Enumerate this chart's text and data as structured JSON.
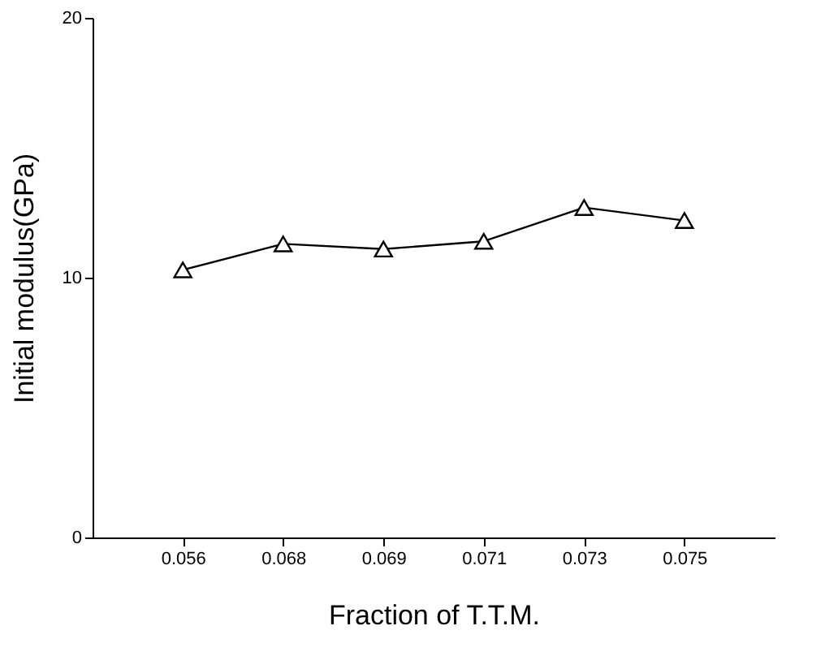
{
  "chart_data": {
    "type": "line",
    "xlabel": "Fraction of T.T.M.",
    "ylabel": "Initial modulus(GPa)",
    "categories": [
      "0.056",
      "0.068",
      "0.069",
      "0.071",
      "0.073",
      "0.075"
    ],
    "series": [
      {
        "color": "#000000",
        "values": [
          10.3,
          11.3,
          11.1,
          11.4,
          12.7,
          12.2
        ]
      }
    ],
    "ylim": [
      0,
      20
    ],
    "yticks": [
      0,
      10,
      20
    ],
    "grid": false,
    "marker": "triangle",
    "line_style": "solid"
  }
}
